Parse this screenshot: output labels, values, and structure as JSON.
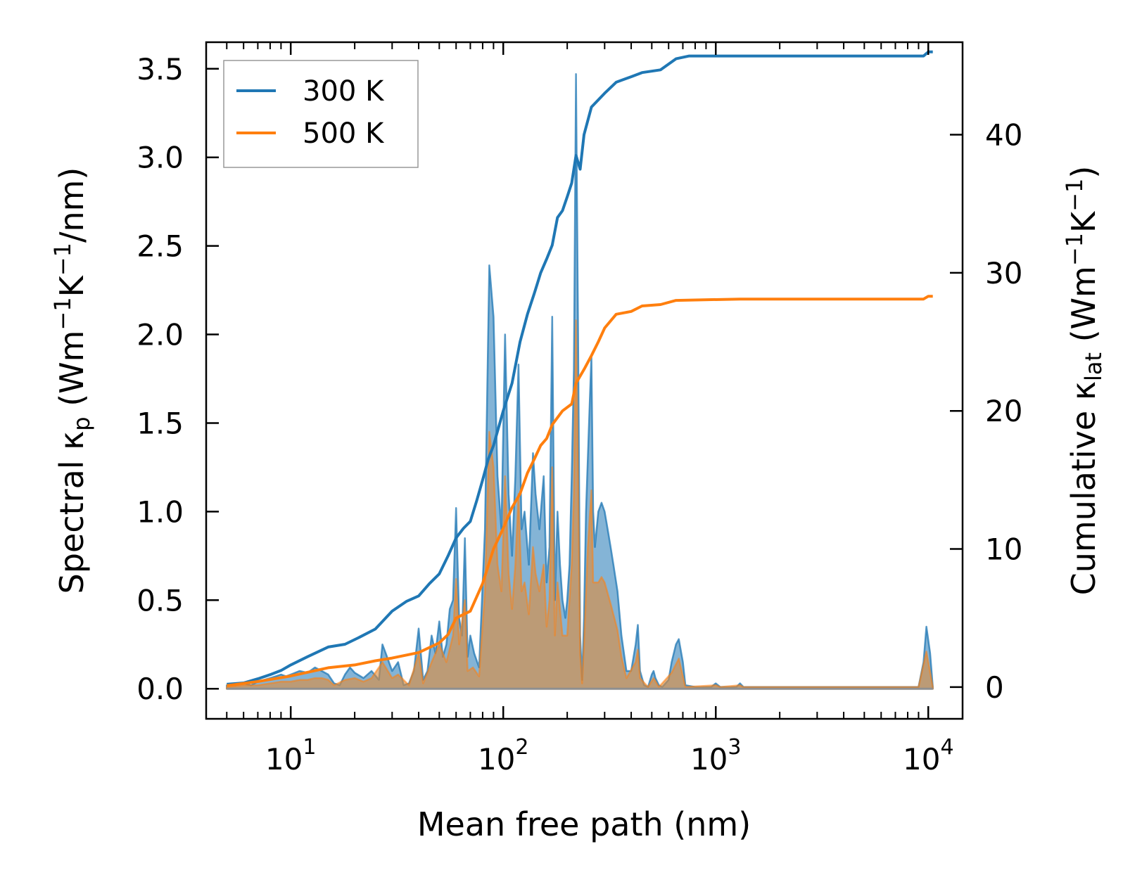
{
  "chart_data": {
    "type": "line",
    "xlabel": "Mean free path (nm)",
    "ylabel_left": {
      "main": "Spectral κ",
      "sub": "p",
      "unit_pre": " (Wm",
      "sup1": "−1",
      "mid": "K",
      "sup2": "−1",
      "unit_post": "/nm)"
    },
    "ylabel_right": {
      "main": "Cumulative κ",
      "sub": "lat",
      "unit_pre": " (Wm",
      "sup1": "−1",
      "mid": "K",
      "sup2": "−1",
      "unit_post": ")"
    },
    "x_scale": "log",
    "xlim": [
      4.0,
      14500
    ],
    "ylim_left": [
      -0.17,
      3.65
    ],
    "ylim_right": [
      -2.3,
      46.7
    ],
    "x_ticks": [
      {
        "value": 10,
        "base": "10",
        "exp": "1"
      },
      {
        "value": 100,
        "base": "10",
        "exp": "2"
      },
      {
        "value": 1000,
        "base": "10",
        "exp": "3"
      },
      {
        "value": 10000,
        "base": "10",
        "exp": "4"
      }
    ],
    "y_ticks_left": [
      0.0,
      0.5,
      1.0,
      1.5,
      2.0,
      2.5,
      3.0,
      3.5
    ],
    "y_tick_labels_left": [
      "0.0",
      "0.5",
      "1.0",
      "1.5",
      "2.0",
      "2.5",
      "3.0",
      "3.5"
    ],
    "y_ticks_right": [
      0,
      10,
      20,
      30,
      40
    ],
    "y_tick_labels_right": [
      "0",
      "10",
      "20",
      "30",
      "40"
    ],
    "legend_position": "top-left",
    "series": [
      {
        "name": "300 K",
        "color": "#1f77b4",
        "spectral": [
          [
            5,
            0.02
          ],
          [
            5.5,
            0.02
          ],
          [
            6,
            0.03
          ],
          [
            6.5,
            0.02
          ],
          [
            7,
            0.04
          ],
          [
            7.5,
            0.05
          ],
          [
            8,
            0.06
          ],
          [
            8.5,
            0.07
          ],
          [
            9,
            0.08
          ],
          [
            9.5,
            0.07
          ],
          [
            10,
            0.08
          ],
          [
            11,
            0.1
          ],
          [
            12,
            0.09
          ],
          [
            13,
            0.12
          ],
          [
            14,
            0.1
          ],
          [
            15,
            0.08
          ],
          [
            16,
            0.03
          ],
          [
            17,
            0.02
          ],
          [
            18,
            0.08
          ],
          [
            19,
            0.12
          ],
          [
            20,
            0.09
          ],
          [
            22,
            0.06
          ],
          [
            24,
            0.1
          ],
          [
            26,
            0.05
          ],
          [
            27,
            0.25
          ],
          [
            28,
            0.2
          ],
          [
            30,
            0.1
          ],
          [
            32,
            0.15
          ],
          [
            34,
            0.02
          ],
          [
            36,
            0.03
          ],
          [
            38,
            0.1
          ],
          [
            40,
            0.34
          ],
          [
            42,
            0.05
          ],
          [
            44,
            0.1
          ],
          [
            46,
            0.3
          ],
          [
            48,
            0.2
          ],
          [
            50,
            0.38
          ],
          [
            52,
            0.18
          ],
          [
            54,
            0.25
          ],
          [
            56,
            0.45
          ],
          [
            58,
            0.5
          ],
          [
            60,
            1.02
          ],
          [
            62,
            0.4
          ],
          [
            64,
            0.3
          ],
          [
            66,
            0.85
          ],
          [
            68,
            0.18
          ],
          [
            70,
            0.3
          ],
          [
            73,
            0.2
          ],
          [
            77,
            0.12
          ],
          [
            82,
            0.9
          ],
          [
            86,
            2.39
          ],
          [
            90,
            2.1
          ],
          [
            94,
            1.2
          ],
          [
            98,
            0.9
          ],
          [
            102,
            2.0
          ],
          [
            106,
            1.1
          ],
          [
            110,
            0.75
          ],
          [
            114,
            1.2
          ],
          [
            118,
            1.83
          ],
          [
            122,
            0.9
          ],
          [
            126,
            1.0
          ],
          [
            132,
            0.7
          ],
          [
            138,
            1.33
          ],
          [
            142,
            1.1
          ],
          [
            148,
            0.9
          ],
          [
            155,
            1.2
          ],
          [
            160,
            0.6
          ],
          [
            165,
            0.8
          ],
          [
            170,
            2.1
          ],
          [
            175,
            0.5
          ],
          [
            180,
            1.0
          ],
          [
            185,
            0.7
          ],
          [
            190,
            0.5
          ],
          [
            196,
            0.4
          ],
          [
            200,
            0.5
          ],
          [
            205,
            0.7
          ],
          [
            210,
            1.2
          ],
          [
            215,
            1.8
          ],
          [
            220,
            3.47
          ],
          [
            225,
            2.0
          ],
          [
            230,
            0.3
          ],
          [
            235,
            0.05
          ],
          [
            240,
            0.4
          ],
          [
            245,
            1.0
          ],
          [
            250,
            1.3
          ],
          [
            255,
            1.6
          ],
          [
            260,
            1.88
          ],
          [
            265,
            1.0
          ],
          [
            270,
            0.8
          ],
          [
            280,
            1.0
          ],
          [
            290,
            1.05
          ],
          [
            300,
            1.0
          ],
          [
            310,
            0.9
          ],
          [
            320,
            0.8
          ],
          [
            330,
            0.7
          ],
          [
            345,
            0.55
          ],
          [
            360,
            0.3
          ],
          [
            380,
            0.1
          ],
          [
            400,
            0.1
          ],
          [
            420,
            0.25
          ],
          [
            430,
            0.36
          ],
          [
            440,
            0.1
          ],
          [
            460,
            0.02
          ],
          [
            480,
            0.01
          ],
          [
            500,
            0.08
          ],
          [
            510,
            0.1
          ],
          [
            520,
            0.06
          ],
          [
            540,
            0.02
          ],
          [
            560,
            0.01
          ],
          [
            600,
            0.05
          ],
          [
            620,
            0.15
          ],
          [
            650,
            0.25
          ],
          [
            670,
            0.28
          ],
          [
            700,
            0.15
          ],
          [
            720,
            0.02
          ],
          [
            800,
            0.01
          ],
          [
            950,
            0.01
          ],
          [
            1000,
            0.03
          ],
          [
            1050,
            0.01
          ],
          [
            1250,
            0.01
          ],
          [
            1300,
            0.03
          ],
          [
            1350,
            0.01
          ],
          [
            9000,
            0.01
          ],
          [
            9500,
            0.15
          ],
          [
            9800,
            0.35
          ],
          [
            10200,
            0.2
          ],
          [
            10500,
            0.01
          ]
        ],
        "cumulative": [
          [
            5,
            0.2
          ],
          [
            6,
            0.3
          ],
          [
            7,
            0.6
          ],
          [
            8,
            0.9
          ],
          [
            9,
            1.2
          ],
          [
            10,
            1.6
          ],
          [
            12,
            2.2
          ],
          [
            15,
            2.9
          ],
          [
            18,
            3.1
          ],
          [
            21,
            3.6
          ],
          [
            25,
            4.2
          ],
          [
            30,
            5.5
          ],
          [
            35,
            6.2
          ],
          [
            40,
            6.6
          ],
          [
            45,
            7.5
          ],
          [
            50,
            8.2
          ],
          [
            55,
            9.5
          ],
          [
            60,
            10.8
          ],
          [
            65,
            11.5
          ],
          [
            70,
            12.0
          ],
          [
            75,
            13.5
          ],
          [
            80,
            15.0
          ],
          [
            85,
            16.5
          ],
          [
            90,
            17.5
          ],
          [
            100,
            20.0
          ],
          [
            110,
            22.0
          ],
          [
            120,
            25.0
          ],
          [
            130,
            27.0
          ],
          [
            140,
            28.5
          ],
          [
            150,
            30.0
          ],
          [
            160,
            31.0
          ],
          [
            170,
            32.0
          ],
          [
            180,
            34.0
          ],
          [
            190,
            34.5
          ],
          [
            200,
            35.5
          ],
          [
            210,
            36.5
          ],
          [
            220,
            38.5
          ],
          [
            230,
            37.5
          ],
          [
            240,
            40.0
          ],
          [
            260,
            42.0
          ],
          [
            300,
            43.0
          ],
          [
            340,
            43.8
          ],
          [
            400,
            44.2
          ],
          [
            450,
            44.5
          ],
          [
            550,
            44.7
          ],
          [
            650,
            45.5
          ],
          [
            750,
            45.7
          ],
          [
            1300,
            45.7
          ],
          [
            9500,
            45.7
          ],
          [
            10000,
            46.0
          ],
          [
            10500,
            46.0
          ]
        ]
      },
      {
        "name": "500 K",
        "color": "#ff7f0e",
        "spectral": [
          [
            5,
            0.01
          ],
          [
            6,
            0.02
          ],
          [
            7,
            0.02
          ],
          [
            8,
            0.03
          ],
          [
            9,
            0.04
          ],
          [
            10,
            0.04
          ],
          [
            11,
            0.05
          ],
          [
            12,
            0.05
          ],
          [
            13,
            0.06
          ],
          [
            14,
            0.06
          ],
          [
            15,
            0.05
          ],
          [
            16,
            0.02
          ],
          [
            18,
            0.05
          ],
          [
            20,
            0.06
          ],
          [
            22,
            0.04
          ],
          [
            24,
            0.06
          ],
          [
            27,
            0.15
          ],
          [
            28,
            0.12
          ],
          [
            30,
            0.06
          ],
          [
            32,
            0.08
          ],
          [
            36,
            0.02
          ],
          [
            40,
            0.2
          ],
          [
            42,
            0.03
          ],
          [
            46,
            0.15
          ],
          [
            50,
            0.25
          ],
          [
            54,
            0.15
          ],
          [
            58,
            0.3
          ],
          [
            60,
            0.62
          ],
          [
            62,
            0.25
          ],
          [
            66,
            0.5
          ],
          [
            68,
            0.1
          ],
          [
            72,
            0.12
          ],
          [
            77,
            0.07
          ],
          [
            82,
            0.55
          ],
          [
            86,
            1.45
          ],
          [
            90,
            1.25
          ],
          [
            94,
            0.7
          ],
          [
            98,
            0.55
          ],
          [
            102,
            1.2
          ],
          [
            106,
            0.65
          ],
          [
            110,
            0.45
          ],
          [
            114,
            0.7
          ],
          [
            118,
            1.1
          ],
          [
            122,
            0.55
          ],
          [
            126,
            0.6
          ],
          [
            132,
            0.42
          ],
          [
            138,
            0.8
          ],
          [
            142,
            0.65
          ],
          [
            148,
            0.55
          ],
          [
            155,
            0.7
          ],
          [
            160,
            0.35
          ],
          [
            165,
            0.5
          ],
          [
            170,
            1.25
          ],
          [
            175,
            0.3
          ],
          [
            180,
            0.6
          ],
          [
            190,
            0.3
          ],
          [
            200,
            0.3
          ],
          [
            210,
            0.7
          ],
          [
            215,
            1.1
          ],
          [
            220,
            2.08
          ],
          [
            225,
            1.2
          ],
          [
            230,
            0.2
          ],
          [
            235,
            0.03
          ],
          [
            240,
            0.25
          ],
          [
            250,
            0.8
          ],
          [
            260,
            1.12
          ],
          [
            265,
            0.6
          ],
          [
            280,
            0.6
          ],
          [
            290,
            0.63
          ],
          [
            300,
            0.6
          ],
          [
            320,
            0.48
          ],
          [
            345,
            0.33
          ],
          [
            360,
            0.18
          ],
          [
            380,
            0.06
          ],
          [
            420,
            0.15
          ],
          [
            430,
            0.22
          ],
          [
            440,
            0.06
          ],
          [
            480,
            0.01
          ],
          [
            510,
            0.06
          ],
          [
            540,
            0.01
          ],
          [
            620,
            0.09
          ],
          [
            670,
            0.17
          ],
          [
            720,
            0.01
          ],
          [
            1000,
            0.02
          ],
          [
            1050,
            0.01
          ],
          [
            1300,
            0.02
          ],
          [
            1350,
            0.01
          ],
          [
            9000,
            0.01
          ],
          [
            9800,
            0.21
          ],
          [
            10500,
            0.01
          ]
        ],
        "cumulative": [
          [
            5,
            0.1
          ],
          [
            7,
            0.4
          ],
          [
            10,
            0.8
          ],
          [
            15,
            1.4
          ],
          [
            20,
            1.6
          ],
          [
            25,
            1.9
          ],
          [
            30,
            2.1
          ],
          [
            40,
            2.5
          ],
          [
            50,
            3.2
          ],
          [
            55,
            3.8
          ],
          [
            60,
            5.0
          ],
          [
            70,
            5.5
          ],
          [
            80,
            7.5
          ],
          [
            90,
            10.0
          ],
          [
            100,
            11.5
          ],
          [
            110,
            13.0
          ],
          [
            120,
            14.0
          ],
          [
            130,
            15.5
          ],
          [
            140,
            16.5
          ],
          [
            150,
            17.5
          ],
          [
            160,
            18.0
          ],
          [
            170,
            19.0
          ],
          [
            190,
            20.0
          ],
          [
            210,
            20.5
          ],
          [
            220,
            22.0
          ],
          [
            240,
            23.0
          ],
          [
            260,
            24.0
          ],
          [
            280,
            25.0
          ],
          [
            300,
            26.0
          ],
          [
            340,
            27.0
          ],
          [
            400,
            27.2
          ],
          [
            450,
            27.6
          ],
          [
            550,
            27.7
          ],
          [
            650,
            28.0
          ],
          [
            1300,
            28.1
          ],
          [
            9500,
            28.1
          ],
          [
            10000,
            28.3
          ],
          [
            10500,
            28.3
          ]
        ]
      }
    ]
  }
}
